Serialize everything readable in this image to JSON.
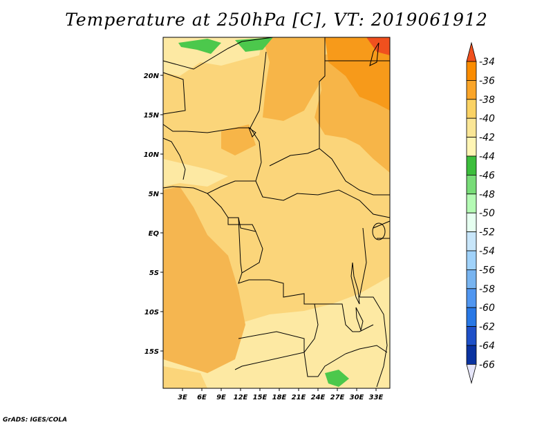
{
  "title": "Temperature at 250hPa [C], VT: 2019061912",
  "credit": "GrADS: IGES/COLA",
  "map": {
    "lat_labels": [
      "20N",
      "15N",
      "10N",
      "5N",
      "EQ",
      "5S",
      "10S",
      "15S"
    ],
    "lon_labels": [
      "3E",
      "6E",
      "9E",
      "12E",
      "15E",
      "18E",
      "21E",
      "24E",
      "27E",
      "30E",
      "33E"
    ]
  },
  "colorbar": {
    "levels": [
      "-34",
      "-36",
      "-38",
      "-40",
      "-42",
      "-44",
      "-46",
      "-48",
      "-50",
      "-52",
      "-54",
      "-56",
      "-58",
      "-60",
      "-62",
      "-64",
      "-66"
    ],
    "colors": [
      "#f0501e",
      "#fa8c00",
      "#faa528",
      "#fad264",
      "#fae696",
      "#fff5b4",
      "#3cbe3c",
      "#78dc78",
      "#b4fab4",
      "#e6fff0",
      "#c8e6fa",
      "#a0d2fa",
      "#78b4f0",
      "#5096f0",
      "#2878e6",
      "#1e50c8",
      "#0a32a0",
      "#000a64",
      "#e6e6fa"
    ]
  }
}
